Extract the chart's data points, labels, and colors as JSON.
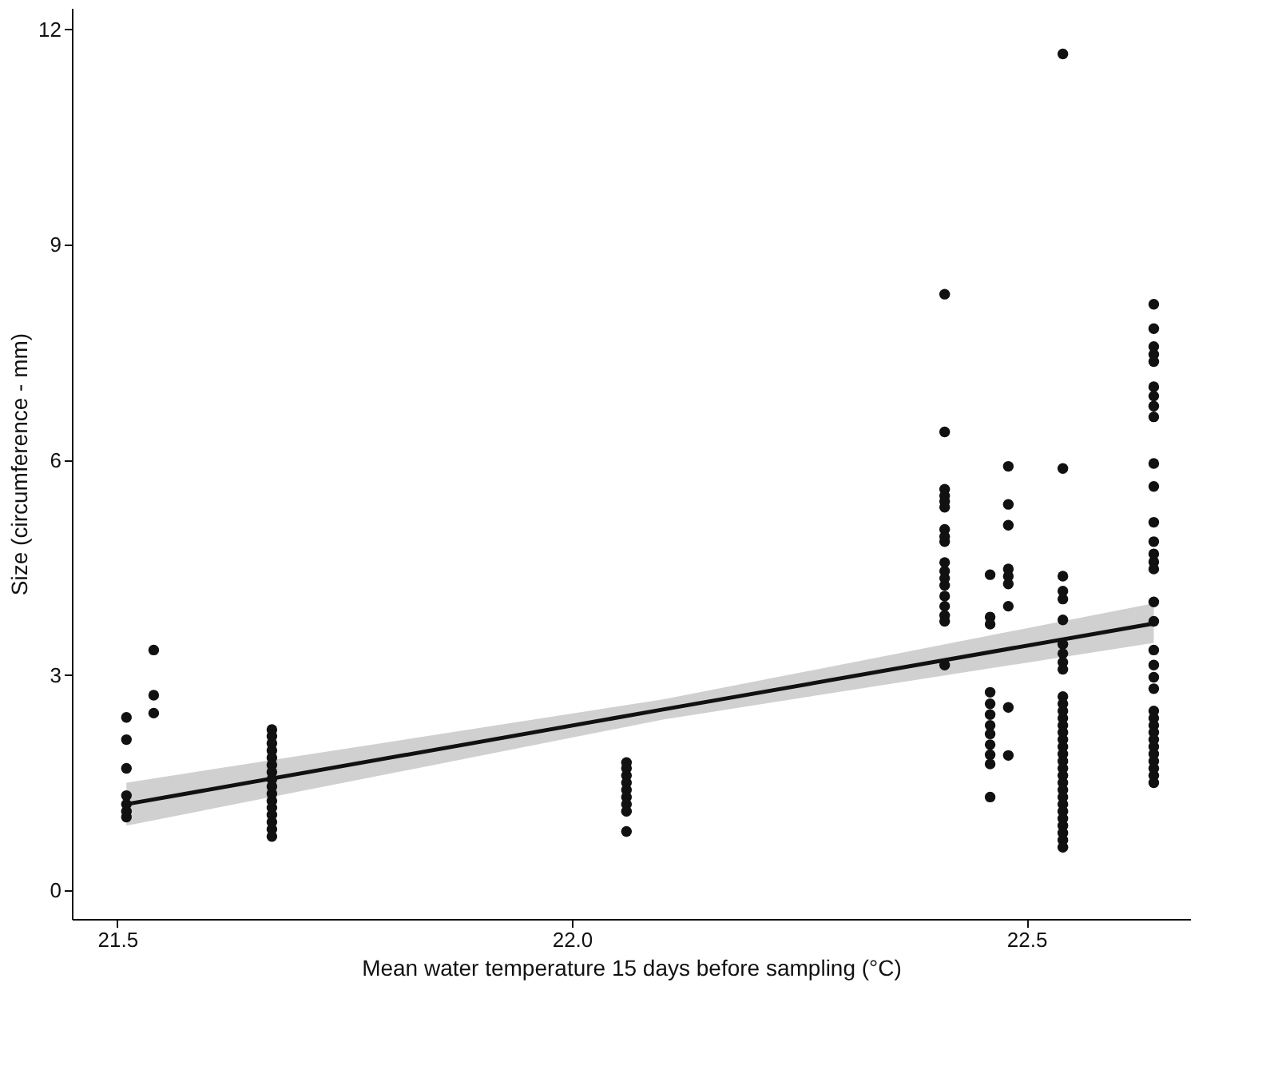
{
  "chart_data": {
    "type": "scatter",
    "xlabel": "Mean water temperature 15 days before sampling (°C)",
    "ylabel": "Size (circumference - mm)",
    "xlim": [
      21.45,
      22.68
    ],
    "xticks": [
      21.5,
      {
        "value": 22.0,
        "label": "22.0"
      },
      22.5
    ],
    "ylim": [
      -0.4,
      12.3
    ],
    "yticks": [
      0,
      3,
      6,
      9,
      12
    ],
    "grid": false,
    "marker": "circle",
    "series": [
      {
        "color": "#111111",
        "x": [
          21.51,
          21.51,
          21.51,
          21.51,
          21.51,
          21.51,
          21.51,
          21.54,
          21.54,
          21.54,
          21.67,
          21.67,
          21.67,
          21.67,
          21.67,
          21.67,
          21.67,
          21.67,
          21.67,
          21.67,
          21.67,
          21.67,
          21.67,
          21.67,
          21.67,
          21.67,
          22.06,
          22.06,
          22.06,
          22.06,
          22.06,
          22.06,
          22.06,
          22.06,
          22.06,
          22.41,
          22.41,
          22.41,
          22.41,
          22.41,
          22.41,
          22.41,
          22.41,
          22.41,
          22.41,
          22.41,
          22.41,
          22.41,
          22.41,
          22.41,
          22.41,
          22.41,
          22.41,
          22.46,
          22.46,
          22.46,
          22.46,
          22.46,
          22.46,
          22.46,
          22.46,
          22.46,
          22.46,
          22.46,
          22.46,
          22.48,
          22.48,
          22.48,
          22.48,
          22.48,
          22.48,
          22.48,
          22.48,
          22.48,
          22.54,
          22.54,
          22.54,
          22.54,
          22.54,
          22.54,
          22.54,
          22.54,
          22.54,
          22.54,
          22.54,
          22.54,
          22.54,
          22.54,
          22.54,
          22.54,
          22.54,
          22.54,
          22.54,
          22.54,
          22.54,
          22.54,
          22.54,
          22.54,
          22.54,
          22.54,
          22.54,
          22.54,
          22.54,
          22.54,
          22.54,
          22.54,
          22.64,
          22.64,
          22.64,
          22.64,
          22.64,
          22.64,
          22.64,
          22.64,
          22.64,
          22.64,
          22.64,
          22.64,
          22.64,
          22.64,
          22.64,
          22.64,
          22.64,
          22.64,
          22.64,
          22.64,
          22.64,
          22.64,
          22.64,
          22.64,
          22.64,
          22.64,
          22.64,
          22.64,
          22.64,
          22.64,
          22.64,
          22.64,
          22.64
        ],
        "values": [
          2.41,
          2.1,
          1.7,
          1.32,
          1.2,
          1.1,
          1.02,
          3.35,
          2.72,
          2.47,
          2.24,
          2.15,
          2.05,
          1.95,
          1.85,
          1.75,
          1.65,
          1.55,
          1.45,
          1.35,
          1.25,
          1.15,
          1.05,
          0.95,
          0.85,
          0.75,
          1.78,
          1.7,
          1.6,
          1.5,
          1.4,
          1.3,
          1.2,
          1.1,
          0.82,
          8.31,
          6.39,
          5.59,
          5.5,
          5.42,
          5.34,
          5.03,
          4.93,
          4.86,
          4.57,
          4.45,
          4.35,
          4.25,
          4.1,
          3.96,
          3.83,
          3.75,
          3.14,
          4.4,
          3.81,
          3.71,
          2.76,
          2.6,
          2.45,
          2.3,
          2.18,
          2.03,
          1.89,
          1.76,
          1.3,
          5.91,
          5.38,
          5.09,
          4.48,
          4.38,
          4.27,
          3.96,
          2.55,
          1.88,
          5.88,
          4.38,
          4.17,
          4.06,
          3.77,
          3.43,
          3.3,
          3.18,
          3.08,
          2.7,
          2.6,
          2.5,
          2.4,
          2.3,
          2.2,
          2.1,
          2.0,
          1.9,
          1.8,
          1.7,
          1.6,
          1.5,
          1.4,
          1.3,
          1.2,
          1.1,
          1.0,
          0.9,
          0.8,
          0.7,
          0.6,
          11.66,
          8.17,
          7.83,
          7.58,
          7.47,
          7.37,
          7.02,
          6.89,
          6.75,
          6.6,
          5.95,
          5.63,
          5.13,
          4.86,
          4.69,
          4.58,
          4.48,
          4.02,
          3.75,
          3.35,
          3.14,
          2.97,
          2.81,
          2.5,
          2.4,
          2.3,
          2.2,
          2.1,
          2.0,
          1.9,
          1.8,
          1.7,
          1.6,
          1.5
        ]
      },
      {
        "type": "line",
        "marker": "none",
        "color": "#111111",
        "x": [
          21.51,
          22.1,
          22.64
        ],
        "values": [
          1.2,
          2.52,
          3.72
        ],
        "lower": [
          0.9,
          2.38,
          3.45
        ],
        "upper": [
          1.5,
          2.66,
          4.0
        ]
      }
    ]
  }
}
